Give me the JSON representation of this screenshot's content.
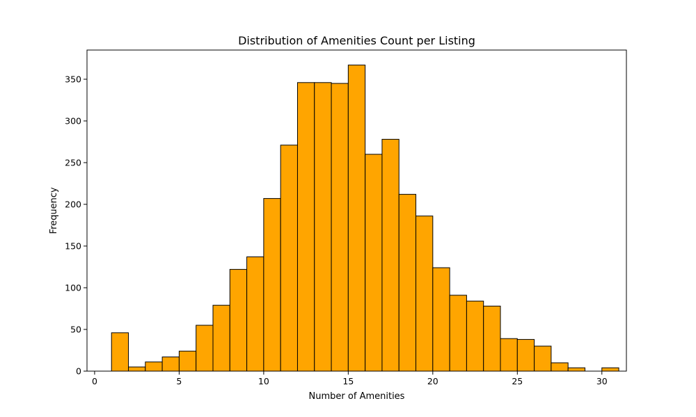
{
  "chart_data": {
    "type": "bar",
    "title": "Distribution of Amenities Count per Listing",
    "xlabel": "Number of Amenities",
    "ylabel": "Frequency",
    "xlim": [
      -0.45,
      31.45
    ],
    "ylim": [
      0,
      385
    ],
    "xticks": [
      0,
      5,
      10,
      15,
      20,
      25,
      30
    ],
    "yticks": [
      0,
      50,
      100,
      150,
      200,
      250,
      300,
      350
    ],
    "bar_color": "#ffa500",
    "edge_color": "#000000",
    "bins": [
      {
        "start": 1,
        "end": 2,
        "value": 46
      },
      {
        "start": 2,
        "end": 3,
        "value": 5
      },
      {
        "start": 3,
        "end": 4,
        "value": 11
      },
      {
        "start": 4,
        "end": 5,
        "value": 17
      },
      {
        "start": 5,
        "end": 6,
        "value": 24
      },
      {
        "start": 6,
        "end": 7,
        "value": 55
      },
      {
        "start": 7,
        "end": 8,
        "value": 79
      },
      {
        "start": 8,
        "end": 9,
        "value": 122
      },
      {
        "start": 9,
        "end": 10,
        "value": 137
      },
      {
        "start": 10,
        "end": 11,
        "value": 207
      },
      {
        "start": 11,
        "end": 12,
        "value": 271
      },
      {
        "start": 12,
        "end": 13,
        "value": 346
      },
      {
        "start": 13,
        "end": 14,
        "value": 346
      },
      {
        "start": 14,
        "end": 15,
        "value": 345
      },
      {
        "start": 15,
        "end": 16,
        "value": 367
      },
      {
        "start": 16,
        "end": 17,
        "value": 260
      },
      {
        "start": 17,
        "end": 18,
        "value": 278
      },
      {
        "start": 18,
        "end": 19,
        "value": 212
      },
      {
        "start": 19,
        "end": 20,
        "value": 186
      },
      {
        "start": 20,
        "end": 21,
        "value": 124
      },
      {
        "start": 21,
        "end": 22,
        "value": 91
      },
      {
        "start": 22,
        "end": 23,
        "value": 84
      },
      {
        "start": 23,
        "end": 24,
        "value": 78
      },
      {
        "start": 24,
        "end": 25,
        "value": 39
      },
      {
        "start": 25,
        "end": 26,
        "value": 38
      },
      {
        "start": 26,
        "end": 27,
        "value": 30
      },
      {
        "start": 27,
        "end": 28,
        "value": 10
      },
      {
        "start": 28,
        "end": 29,
        "value": 4
      },
      {
        "start": 29,
        "end": 30,
        "value": 0
      },
      {
        "start": 30,
        "end": 31,
        "value": 4
      }
    ]
  }
}
